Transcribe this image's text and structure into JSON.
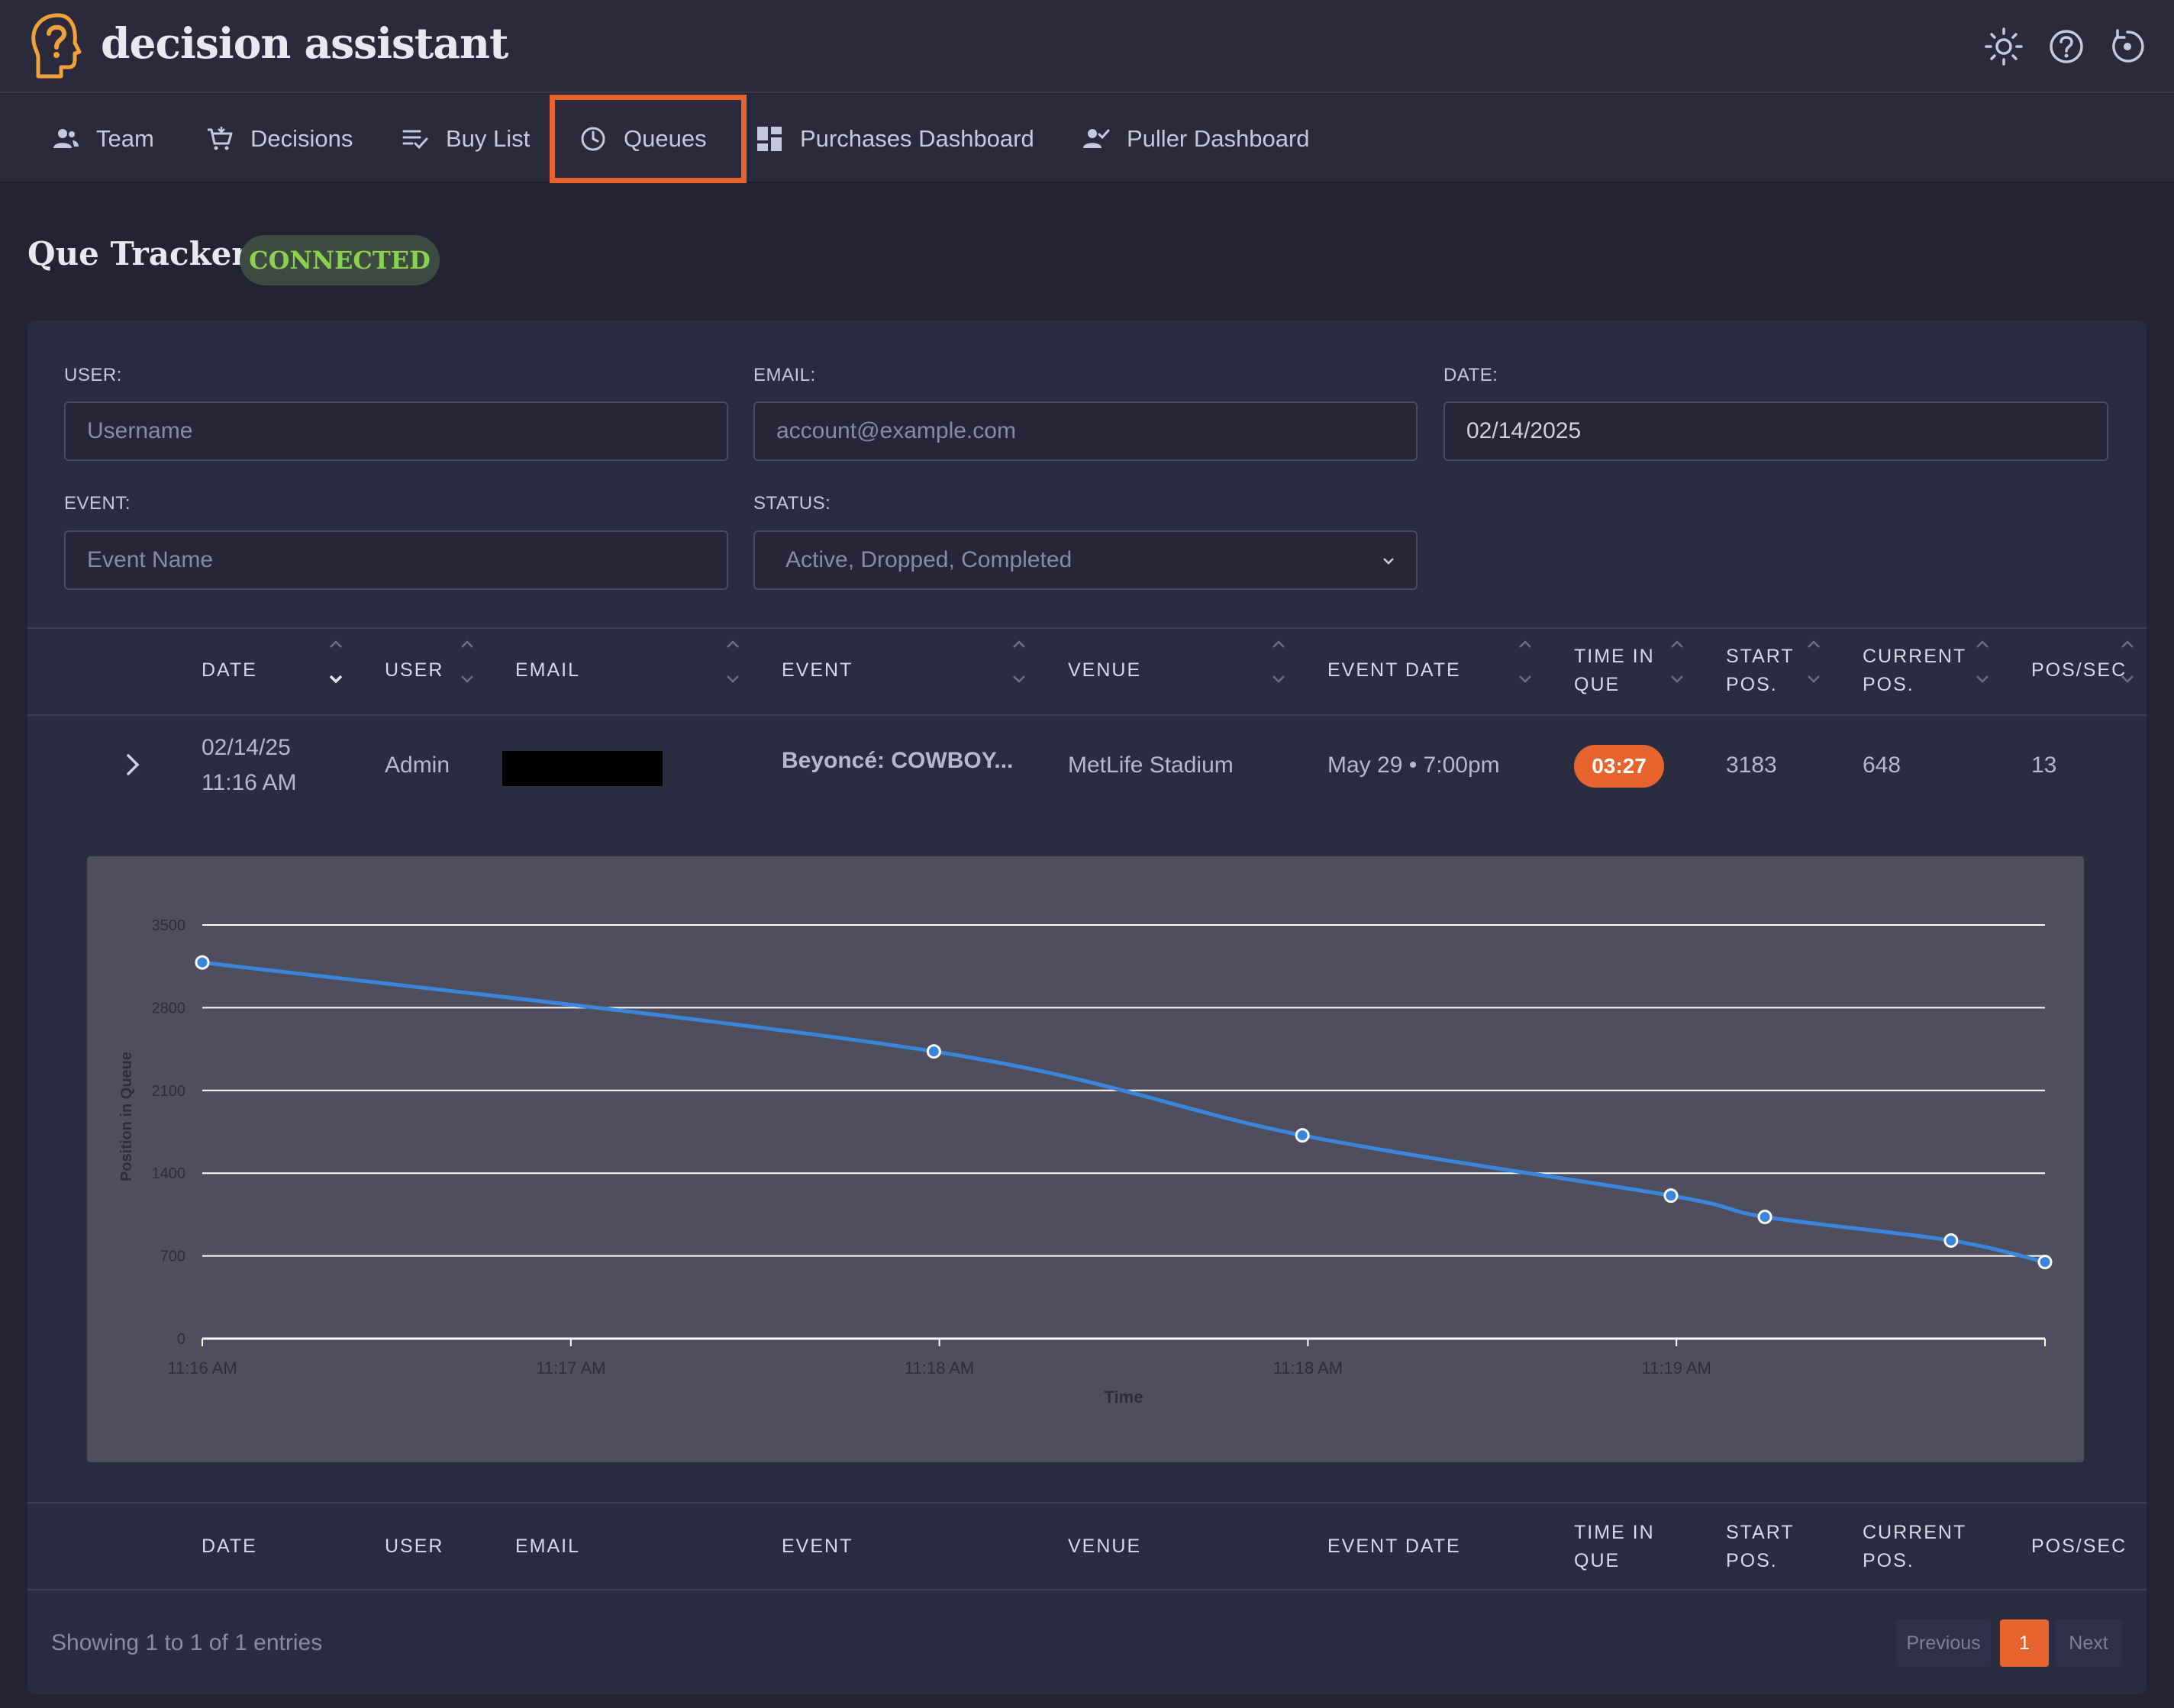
{
  "app": {
    "title": "decision assistant"
  },
  "header_icons": [
    "brightness-icon",
    "help-icon",
    "refresh-icon"
  ],
  "nav": {
    "items": [
      {
        "label": "Team",
        "icon": "team-icon"
      },
      {
        "label": "Decisions",
        "icon": "cart-icon"
      },
      {
        "label": "Buy List",
        "icon": "checklist-icon"
      },
      {
        "label": "Queues",
        "icon": "clock-icon",
        "active": true
      },
      {
        "label": "Purchases Dashboard",
        "icon": "dashboard-icon"
      },
      {
        "label": "Puller Dashboard",
        "icon": "person-check-icon"
      }
    ]
  },
  "page": {
    "title": "Que Tracker",
    "status": "CONNECTED"
  },
  "filters": {
    "user": {
      "label": "USER:",
      "placeholder": "Username",
      "value": ""
    },
    "email": {
      "label": "EMAIL:",
      "placeholder": "account@example.com",
      "value": ""
    },
    "date": {
      "label": "DATE:",
      "value": "02/14/2025"
    },
    "event": {
      "label": "EVENT:",
      "placeholder": "Event Name",
      "value": ""
    },
    "status": {
      "label": "STATUS:",
      "value": "Active, Dropped, Completed"
    }
  },
  "table": {
    "columns": [
      {
        "line1": "DATE",
        "line2": ""
      },
      {
        "line1": "USER",
        "line2": ""
      },
      {
        "line1": "EMAIL",
        "line2": ""
      },
      {
        "line1": "EVENT",
        "line2": ""
      },
      {
        "line1": "VENUE",
        "line2": ""
      },
      {
        "line1": "EVENT DATE",
        "line2": ""
      },
      {
        "line1": "TIME IN",
        "line2": "QUE"
      },
      {
        "line1": "START",
        "line2": "POS."
      },
      {
        "line1": "CURRENT",
        "line2": "POS."
      },
      {
        "line1": "POS/SEC",
        "line2": ""
      }
    ],
    "rows": [
      {
        "date": "02/14/25",
        "time": "11:16 AM",
        "user": "Admin",
        "email": "",
        "event": "Beyoncé: COWBOY...",
        "venue": "MetLife Stadium",
        "event_date": "May 29 • 7:00pm",
        "time_in_que": "03:27",
        "start_pos": "3183",
        "current_pos": "648",
        "pos_per_sec": "13"
      }
    ]
  },
  "chart_data": {
    "type": "line",
    "title": "",
    "xlabel": "Time",
    "ylabel": "Position in Queue",
    "ylim": [
      0,
      3500
    ],
    "yticks": [
      0,
      700,
      1400,
      2100,
      2800,
      3500
    ],
    "xticks": [
      "11:16 AM",
      "11:17 AM",
      "11:18 AM",
      "11:18 AM",
      "11:19 AM",
      ""
    ],
    "series": [
      {
        "name": "",
        "x_fraction": [
          0.0,
          0.397,
          0.597,
          0.797,
          0.848,
          0.949,
          1.0
        ],
        "values": [
          3183,
          2430,
          1720,
          1210,
          1030,
          830,
          648
        ]
      }
    ],
    "line_color": "#3b86dc",
    "grid": true
  },
  "pagination": {
    "info": "Showing 1 to 1 of 1 entries",
    "previous": "Previous",
    "current": "1",
    "next": "Next"
  },
  "colors": {
    "accent": "#e8642f",
    "connected": "#8ad14e",
    "background": "#232334"
  }
}
